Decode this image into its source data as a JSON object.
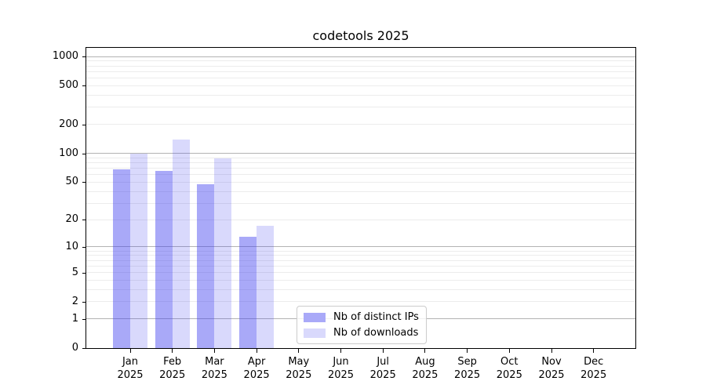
{
  "chart_data": {
    "type": "bar",
    "title": "codetools 2025",
    "categories": [
      "Jan",
      "Feb",
      "Mar",
      "Apr",
      "May",
      "Jun",
      "Jul",
      "Aug",
      "Sep",
      "Oct",
      "Nov",
      "Dec"
    ],
    "x_year_label": "2025",
    "series": [
      {
        "name": "Nb of distinct IPs",
        "values": [
          68,
          66,
          48,
          13,
          null,
          null,
          null,
          null,
          null,
          null,
          null,
          null
        ],
        "bar_color": "rgba(64,64,240,0.45)",
        "swatch_color": "#a9a9f8"
      },
      {
        "name": "Nb of downloads",
        "values": [
          100,
          138,
          88,
          17,
          null,
          null,
          null,
          null,
          null,
          null,
          null,
          null
        ],
        "bar_color": "rgba(64,64,240,0.2)",
        "swatch_color": "#d9d9fc"
      }
    ],
    "y_axis": {
      "scale": "log1p",
      "tick_values": [
        0,
        1,
        2,
        5,
        10,
        20,
        50,
        100,
        200,
        500,
        1000
      ],
      "major_grid_values": [
        1,
        10,
        100,
        1000
      ],
      "top_value": 1233
    },
    "grid": {
      "major_color": "#b3b3b3",
      "minor_color": "#ececec",
      "vertical": false
    },
    "legend": {
      "position": "lower-center"
    }
  }
}
